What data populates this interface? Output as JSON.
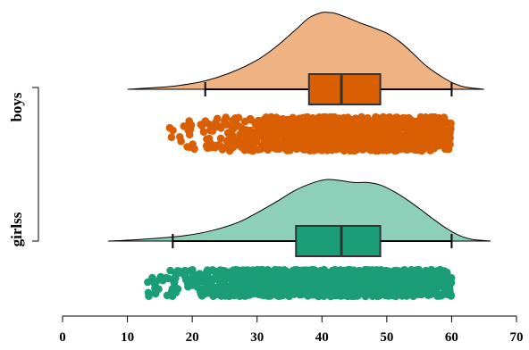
{
  "chart_data": {
    "type": "raincloud",
    "title": "",
    "xlabel": "",
    "ylabel": "",
    "xlim": [
      0,
      70
    ],
    "x_ticks": [
      "0",
      "10",
      "20",
      "30",
      "40",
      "50",
      "60",
      "70"
    ],
    "grid": false,
    "legend": "none",
    "groups": [
      {
        "name": "boys",
        "color": "#d95f02",
        "fill": "#efb283",
        "box": {
          "q1": 38,
          "median": 43,
          "q3": 49,
          "whisker_low": 22,
          "whisker_high": 60
        },
        "density": {
          "x": [
            10,
            14,
            18,
            22,
            26,
            30,
            33,
            36,
            38,
            40,
            41,
            42,
            44,
            46,
            48,
            50,
            52,
            54,
            56,
            58,
            60,
            62,
            65
          ],
          "y": [
            0.0,
            0.02,
            0.05,
            0.11,
            0.22,
            0.38,
            0.56,
            0.78,
            0.93,
            1.0,
            1.0,
            0.99,
            0.93,
            0.86,
            0.8,
            0.73,
            0.62,
            0.47,
            0.31,
            0.19,
            0.09,
            0.03,
            0.0
          ]
        },
        "points": {
          "min": 16,
          "max": 60,
          "count": 1200
        }
      },
      {
        "name": "girlss",
        "color": "#1b9e77",
        "fill": "#8ecfb9",
        "box": {
          "q1": 36,
          "median": 43,
          "q3": 49,
          "whisker_low": 17,
          "whisker_high": 60
        },
        "density": {
          "x": [
            7,
            11,
            15,
            19,
            23,
            27,
            30,
            33,
            36,
            39,
            41,
            43,
            45,
            47,
            49,
            51,
            53,
            55,
            57,
            59,
            61,
            63,
            66
          ],
          "y": [
            0.0,
            0.02,
            0.05,
            0.09,
            0.17,
            0.3,
            0.46,
            0.64,
            0.83,
            0.96,
            1.0,
            0.98,
            0.95,
            0.95,
            0.91,
            0.81,
            0.68,
            0.53,
            0.37,
            0.22,
            0.1,
            0.03,
            0.0
          ]
        },
        "points": {
          "min": 13,
          "max": 60,
          "count": 1500
        }
      }
    ]
  }
}
